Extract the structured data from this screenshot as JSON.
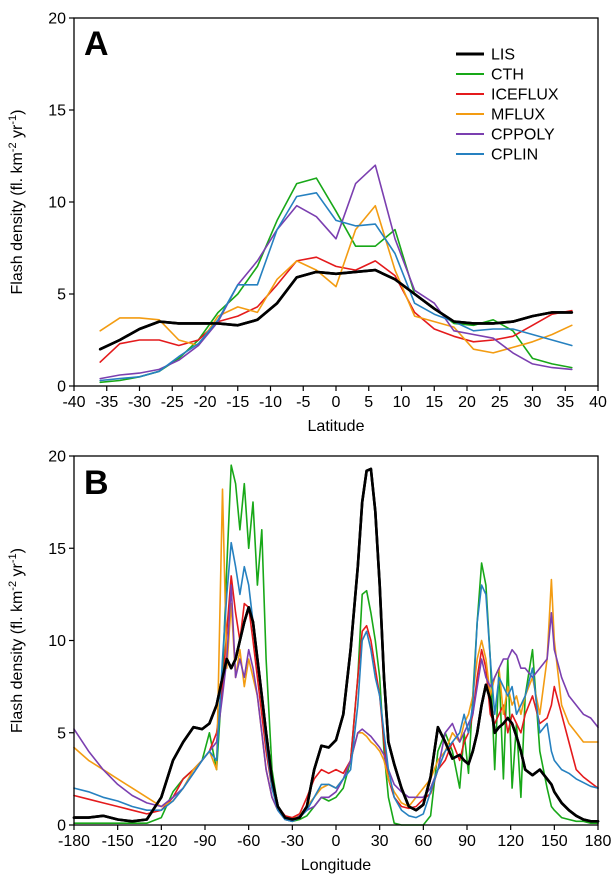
{
  "chart_data": [
    {
      "panel": "A",
      "type": "line",
      "xlabel": "Latitude",
      "ylabel_parts": [
        "Flash density (fl. km",
        "-2",
        " yr",
        "-1",
        ")"
      ],
      "xlim": [
        -40,
        40
      ],
      "ylim": [
        0,
        20
      ],
      "xticks": [
        -40,
        -35,
        -30,
        -25,
        -20,
        -15,
        -10,
        -5,
        0,
        5,
        10,
        15,
        20,
        25,
        30,
        35,
        40
      ],
      "yticks": [
        0,
        5,
        10,
        15,
        20
      ],
      "grid": false,
      "legend_position": "top-right",
      "x": [
        -36,
        -33,
        -30,
        -27,
        -24,
        -21,
        -18,
        -15,
        -12,
        -9,
        -6,
        -3,
        0,
        3,
        6,
        9,
        12,
        15,
        18,
        21,
        24,
        27,
        30,
        33,
        36
      ],
      "series": [
        {
          "name": "LIS",
          "color": "#000000",
          "width": 2.6,
          "values": [
            2.0,
            2.5,
            3.1,
            3.5,
            3.4,
            3.4,
            3.4,
            3.3,
            3.6,
            4.5,
            5.9,
            6.2,
            6.1,
            6.2,
            6.3,
            5.8,
            5.0,
            4.2,
            3.5,
            3.4,
            3.4,
            3.5,
            3.8,
            4.0,
            4.0
          ]
        },
        {
          "name": "CTH",
          "color": "#18a818",
          "width": 1.6,
          "values": [
            0.2,
            0.3,
            0.5,
            0.8,
            1.5,
            2.5,
            4.0,
            5.0,
            6.5,
            9.0,
            11.0,
            11.3,
            9.5,
            7.6,
            7.6,
            8.5,
            5.0,
            4.2,
            3.4,
            3.3,
            3.6,
            3.0,
            1.5,
            1.2,
            1.0
          ]
        },
        {
          "name": "ICEFLUX",
          "color": "#e41a1c",
          "width": 1.6,
          "values": [
            1.3,
            2.3,
            2.5,
            2.5,
            2.2,
            2.5,
            3.5,
            3.8,
            4.3,
            5.5,
            6.8,
            7.0,
            6.5,
            6.3,
            6.8,
            6.0,
            4.0,
            3.1,
            2.7,
            2.4,
            2.5,
            2.7,
            3.3,
            3.9,
            4.1
          ]
        },
        {
          "name": "MFLUX",
          "color": "#f39c12",
          "width": 1.6,
          "values": [
            3.0,
            3.7,
            3.7,
            3.6,
            2.5,
            2.2,
            3.8,
            4.3,
            4.0,
            5.8,
            6.8,
            6.3,
            5.4,
            8.5,
            9.8,
            6.3,
            3.8,
            3.5,
            3.2,
            2.0,
            1.8,
            2.1,
            2.4,
            2.8,
            3.3
          ]
        },
        {
          "name": "CPPOLY",
          "color": "#7b3fb0",
          "width": 1.6,
          "values": [
            0.4,
            0.6,
            0.7,
            0.9,
            1.4,
            2.2,
            3.5,
            5.5,
            6.8,
            8.5,
            9.8,
            9.2,
            8.0,
            11.0,
            12.0,
            8.0,
            5.2,
            4.5,
            3.0,
            2.8,
            2.6,
            1.8,
            1.2,
            1.0,
            0.9
          ]
        },
        {
          "name": "CPLIN",
          "color": "#2681c0",
          "width": 1.6,
          "values": [
            0.3,
            0.4,
            0.5,
            0.8,
            1.6,
            2.3,
            3.6,
            5.5,
            5.5,
            8.5,
            10.3,
            10.5,
            9.0,
            8.7,
            8.8,
            7.2,
            4.5,
            3.9,
            3.5,
            3.0,
            3.1,
            3.1,
            2.8,
            2.5,
            2.2
          ]
        }
      ]
    },
    {
      "panel": "B",
      "type": "line",
      "xlabel": "Longitude",
      "ylabel_parts": [
        "Flash density (fl. km",
        "-2",
        " yr",
        "-1",
        ")"
      ],
      "xlim": [
        -180,
        180
      ],
      "ylim": [
        0,
        20
      ],
      "xticks": [
        -180,
        -150,
        -120,
        -90,
        -60,
        -30,
        0,
        30,
        60,
        90,
        120,
        150,
        180
      ],
      "yticks": [
        0,
        5,
        10,
        15,
        20
      ],
      "grid": false,
      "x": [
        -180,
        -170,
        -160,
        -150,
        -140,
        -130,
        -120,
        -112,
        -105,
        -98,
        -92,
        -87,
        -82,
        -78,
        -75,
        -72,
        -69,
        -66,
        -63,
        -60,
        -57,
        -54,
        -51,
        -48,
        -44,
        -40,
        -35,
        -30,
        -25,
        -20,
        -15,
        -10,
        -5,
        0,
        5,
        10,
        15,
        18,
        21,
        24,
        27,
        30,
        33,
        36,
        40,
        45,
        50,
        55,
        60,
        65,
        70,
        75,
        80,
        85,
        88,
        91,
        94,
        97,
        100,
        103,
        106,
        109,
        112,
        115,
        118,
        121,
        124,
        127,
        130,
        135,
        140,
        145,
        148,
        150,
        155,
        160,
        165,
        170,
        175,
        180
      ],
      "series": [
        {
          "name": "LIS",
          "color": "#000000",
          "width": 2.6,
          "values": [
            0.4,
            0.4,
            0.5,
            0.3,
            0.2,
            0.3,
            1.5,
            3.5,
            4.5,
            5.3,
            5.2,
            5.5,
            6.5,
            8.0,
            9.0,
            8.5,
            9.0,
            10.0,
            11.0,
            11.8,
            11.0,
            9.0,
            7.0,
            5.0,
            2.5,
            1.0,
            0.4,
            0.3,
            0.4,
            1.0,
            3.0,
            4.3,
            4.2,
            4.6,
            6.0,
            9.5,
            14.0,
            17.5,
            19.2,
            19.3,
            17.0,
            13.0,
            8.0,
            4.5,
            3.3,
            2.0,
            1.0,
            0.8,
            1.1,
            2.6,
            5.3,
            4.5,
            3.6,
            3.8,
            3.5,
            3.3,
            4.0,
            5.0,
            6.5,
            7.6,
            6.8,
            5.0,
            5.3,
            5.5,
            5.8,
            5.5,
            4.8,
            4.0,
            3.0,
            2.7,
            3.0,
            2.5,
            2.2,
            1.8,
            1.2,
            0.8,
            0.5,
            0.3,
            0.2,
            0.2
          ]
        },
        {
          "name": "CTH",
          "color": "#18a818",
          "width": 1.6,
          "values": [
            0.1,
            0.1,
            0.1,
            0.1,
            0.1,
            0.1,
            0.4,
            1.8,
            2.5,
            3.0,
            3.5,
            5.0,
            3.0,
            8.0,
            14.0,
            19.5,
            18.5,
            16.0,
            18.5,
            15.0,
            17.5,
            13.0,
            16.0,
            9.0,
            3.0,
            1.0,
            0.3,
            0.2,
            0.3,
            0.5,
            1.0,
            1.5,
            1.3,
            1.5,
            2.0,
            3.5,
            8.0,
            12.5,
            12.7,
            11.5,
            10.0,
            8.0,
            4.0,
            1.5,
            0.1,
            0.0,
            0.0,
            0.0,
            0.0,
            0.5,
            4.0,
            5.0,
            4.0,
            2.0,
            5.0,
            2.8,
            7.0,
            11.0,
            14.2,
            13.0,
            9.0,
            3.0,
            8.5,
            2.5,
            9.0,
            2.0,
            5.5,
            1.5,
            7.0,
            9.5,
            4.0,
            2.0,
            1.0,
            0.8,
            0.4,
            0.3,
            0.2,
            0.2,
            0.1,
            0.1
          ]
        },
        {
          "name": "ICEFLUX",
          "color": "#e41a1c",
          "width": 1.6,
          "values": [
            1.6,
            1.4,
            1.2,
            1.0,
            0.8,
            0.6,
            0.8,
            1.5,
            2.5,
            3.0,
            3.5,
            4.0,
            5.0,
            7.5,
            10.5,
            13.5,
            11.5,
            10.0,
            12.0,
            11.8,
            10.0,
            8.0,
            6.0,
            4.0,
            2.0,
            1.0,
            0.5,
            0.4,
            0.6,
            1.5,
            2.5,
            3.0,
            2.8,
            3.0,
            2.8,
            3.5,
            8.0,
            10.5,
            10.8,
            10.0,
            8.5,
            7.0,
            4.5,
            2.5,
            1.5,
            1.0,
            0.9,
            1.0,
            1.4,
            1.7,
            3.0,
            3.5,
            4.5,
            3.5,
            4.5,
            5.0,
            6.0,
            8.0,
            9.5,
            8.5,
            6.0,
            5.5,
            6.0,
            6.5,
            5.0,
            6.0,
            5.5,
            5.0,
            6.0,
            7.0,
            5.5,
            5.8,
            6.5,
            7.5,
            6.0,
            4.5,
            3.0,
            2.6,
            2.3,
            2.0
          ]
        },
        {
          "name": "MFLUX",
          "color": "#f39c12",
          "width": 1.6,
          "values": [
            4.2,
            3.5,
            3.0,
            2.5,
            2.0,
            1.5,
            1.0,
            1.3,
            2.0,
            3.0,
            3.5,
            4.0,
            3.0,
            18.2,
            8.5,
            12.0,
            8.0,
            9.5,
            7.5,
            9.0,
            8.0,
            7.0,
            5.0,
            3.0,
            1.5,
            0.8,
            0.4,
            0.3,
            0.5,
            1.0,
            1.5,
            2.0,
            2.2,
            2.0,
            2.5,
            3.5,
            5.0,
            5.0,
            4.8,
            4.5,
            4.3,
            4.0,
            3.5,
            2.5,
            1.8,
            1.2,
            1.0,
            1.5,
            2.0,
            2.5,
            3.5,
            4.0,
            5.0,
            4.5,
            5.5,
            6.0,
            7.0,
            9.0,
            10.0,
            9.0,
            7.0,
            8.0,
            8.5,
            6.0,
            7.5,
            6.5,
            7.0,
            6.0,
            7.0,
            8.0,
            6.0,
            9.0,
            13.3,
            10.0,
            6.5,
            5.5,
            5.0,
            4.5,
            4.5,
            4.5
          ]
        },
        {
          "name": "CPPOLY",
          "color": "#7b3fb0",
          "width": 1.6,
          "values": [
            5.2,
            4.0,
            3.0,
            2.2,
            1.6,
            1.2,
            1.0,
            1.5,
            2.0,
            2.8,
            3.5,
            4.0,
            4.5,
            7.0,
            9.0,
            13.0,
            8.0,
            9.0,
            8.0,
            9.5,
            8.5,
            7.0,
            5.0,
            3.0,
            1.5,
            0.8,
            0.3,
            0.2,
            0.5,
            0.8,
            1.0,
            1.5,
            1.5,
            1.8,
            2.5,
            3.5,
            5.0,
            5.2,
            5.0,
            4.8,
            4.5,
            4.2,
            3.8,
            3.0,
            2.2,
            1.8,
            1.5,
            1.5,
            1.5,
            2.0,
            3.0,
            5.0,
            5.5,
            4.5,
            5.0,
            5.5,
            6.0,
            7.5,
            9.0,
            8.0,
            7.5,
            8.0,
            8.5,
            9.0,
            9.0,
            9.5,
            9.2,
            8.5,
            8.5,
            8.0,
            8.5,
            9.0,
            11.5,
            9.5,
            8.0,
            7.0,
            6.5,
            6.0,
            5.8,
            5.3
          ]
        },
        {
          "name": "CPLIN",
          "color": "#2681c0",
          "width": 1.6,
          "values": [
            2.0,
            1.8,
            1.5,
            1.3,
            1.0,
            0.8,
            0.8,
            1.3,
            2.0,
            2.8,
            3.5,
            4.0,
            3.5,
            9.0,
            12.5,
            15.3,
            14.0,
            12.5,
            14.0,
            13.0,
            11.0,
            9.0,
            7.0,
            4.5,
            2.0,
            0.8,
            0.3,
            0.2,
            0.4,
            0.8,
            1.5,
            2.2,
            2.2,
            2.0,
            2.5,
            3.0,
            6.5,
            10.0,
            10.5,
            9.5,
            8.0,
            7.0,
            5.0,
            3.0,
            1.5,
            0.8,
            0.5,
            0.4,
            0.6,
            1.8,
            3.0,
            4.0,
            4.5,
            5.0,
            6.0,
            5.0,
            6.5,
            11.0,
            13.0,
            12.5,
            9.0,
            6.0,
            8.0,
            7.5,
            7.0,
            7.5,
            6.0,
            6.5,
            7.0,
            8.5,
            5.0,
            5.5,
            4.0,
            3.5,
            3.0,
            2.8,
            2.5,
            2.3,
            2.1,
            2.0
          ]
        }
      ]
    }
  ]
}
